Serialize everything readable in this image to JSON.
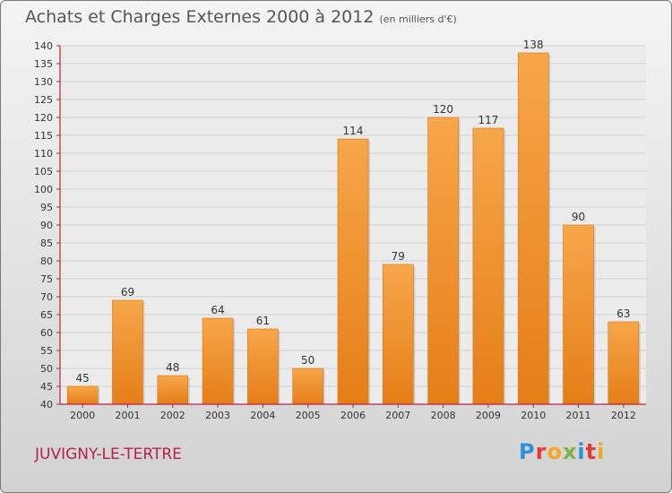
{
  "title": "Achats et Charges Externes 2000 à 2012",
  "unit": "(en milliers d'€)",
  "location": "JUVIGNY-LE-TERTRE",
  "logo": {
    "letters": [
      "P",
      "r",
      "o",
      "x",
      "i",
      "t",
      "i"
    ],
    "colors": [
      "#2f8fd8",
      "#e53935",
      "#f5a623",
      "#7cb342",
      "#2f8fd8",
      "#e53935",
      "#f5a623"
    ]
  },
  "colors": {
    "bar_top": "#f7a64a",
    "bar_bottom": "#e57e17",
    "axis": "#b8204a",
    "grid": "#cfcfcf"
  },
  "chart_data": {
    "type": "bar",
    "title": "Achats et Charges Externes 2000 à 2012",
    "ylabel": "(en milliers d'€)",
    "categories": [
      "2000",
      "2001",
      "2002",
      "2003",
      "2004",
      "2005",
      "2006",
      "2007",
      "2008",
      "2009",
      "2010",
      "2011",
      "2012"
    ],
    "values": [
      45,
      69,
      48,
      64,
      61,
      50,
      114,
      79,
      120,
      117,
      138,
      90,
      63
    ],
    "ylim": [
      40,
      140
    ],
    "yticks": [
      40,
      45,
      50,
      55,
      60,
      65,
      70,
      75,
      80,
      85,
      90,
      95,
      100,
      105,
      110,
      115,
      120,
      125,
      130,
      135,
      140
    ],
    "grid": true
  }
}
